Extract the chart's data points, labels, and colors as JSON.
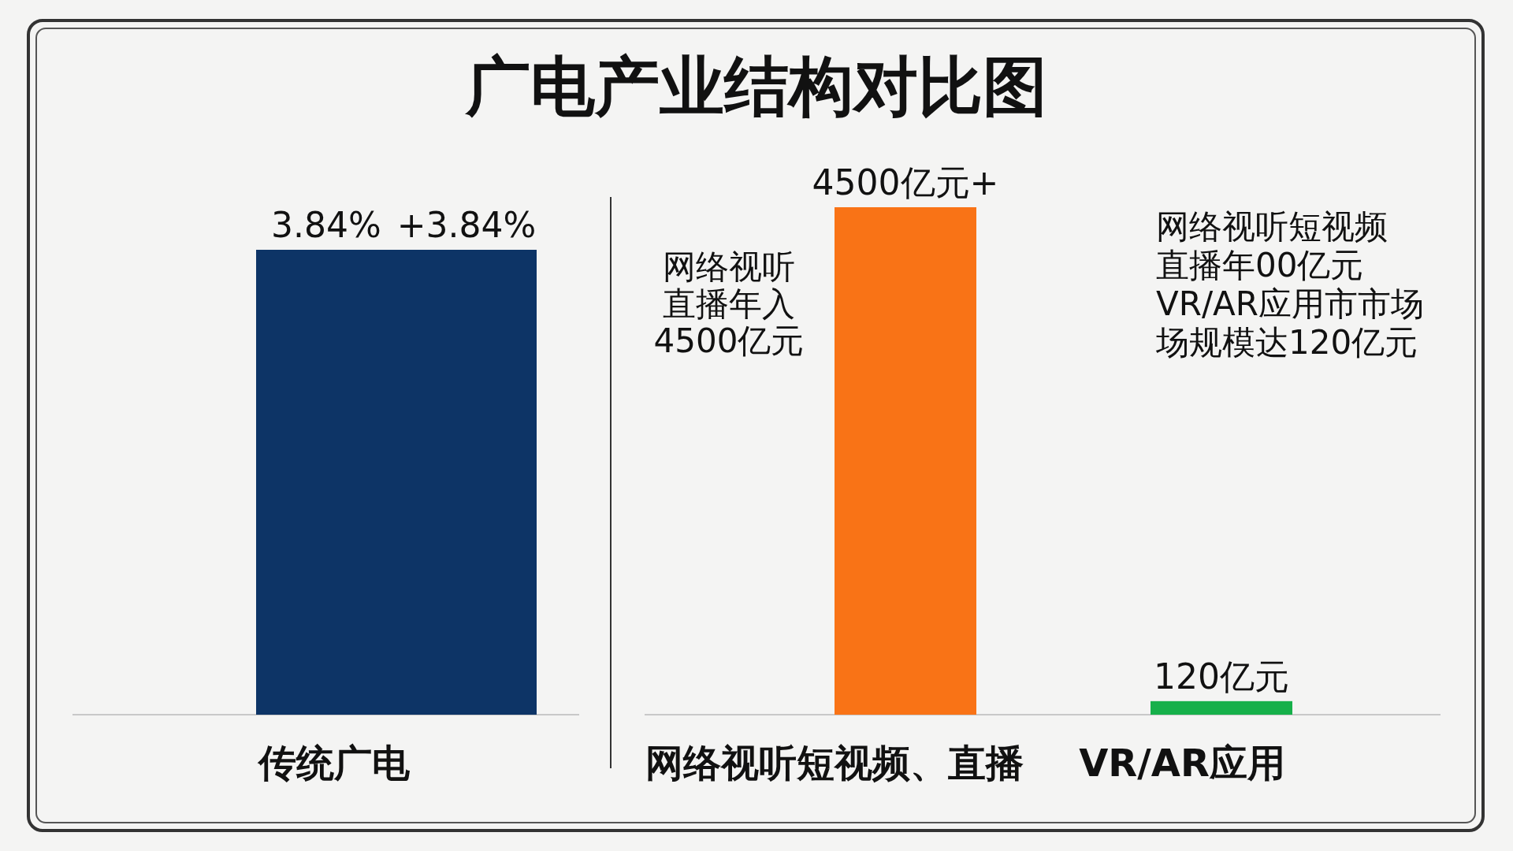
{
  "chart_data": [
    {
      "type": "bar",
      "title": "广电产业结构对比图",
      "categories": [
        "传统广电",
        null
      ],
      "values": [
        3.84,
        3.84
      ],
      "colors": [
        "#0d3466",
        "#0d3466"
      ],
      "value_labels": [
        "3.84%",
        "+3.84%"
      ]
    },
    {
      "type": "bar",
      "categories": [
        "网络视听短视频、直播",
        "VR/AR应用"
      ],
      "values": [
        4500,
        120
      ],
      "colors": [
        "#f97316",
        "#16b04a"
      ],
      "value_labels": [
        "4500亿元+",
        "120亿元"
      ],
      "annotations": [
        "网络视听直播年入4500亿元",
        "网络视听短视频直播年00亿元VR/AR应用市市场场规模达120亿元"
      ]
    }
  ]
}
